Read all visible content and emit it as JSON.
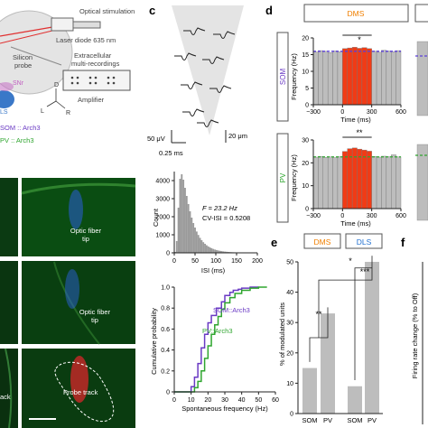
{
  "colors": {
    "dms": "#f07f00",
    "dls": "#1e6fd0",
    "som": "#6a3ac4",
    "pv": "#2fa52f",
    "bar_gray": "#bdbdbd",
    "bar_red": "#f03b16",
    "histo_gray": "#9a9a9a",
    "micro_green": "#0a4d12",
    "probe_red": "#d8262a",
    "probe_blue": "#2b5fd8"
  },
  "panel_a": {
    "optical_stimulation": "Optical stimulation",
    "laser": "Laser diode 635 nm",
    "silicon_probe_1": "Silicon",
    "silicon_probe_2": "probe",
    "snr": "SNr",
    "ls": "LS",
    "extracellular_1": "Extracellular",
    "extracellular_2": "multi-recordings",
    "amplifier": "Amplifier",
    "axis_d": "D",
    "axis_r": "R",
    "axis_l": "L",
    "som_label": "SOM :: Arch3",
    "pv_label": "PV :: Arch3"
  },
  "panel_b": {
    "fiber_tip_1a": "Optic fiber",
    "fiber_tip_1b": "tip",
    "fiber_tip_2a": "Optic fiber",
    "fiber_tip_2b": "tip",
    "probe_track": "Probe track",
    "track_partial": "ack"
  },
  "panel_c": {
    "letter": "c",
    "scale_uv": "50 μV",
    "scale_ms": "0.25 ms",
    "scale_um": "20 μm",
    "histogram": {
      "ylabel": "Count",
      "xlabel": "ISI (ms)",
      "yticks": [
        "4000",
        "3000",
        "2000",
        "1000",
        "0"
      ],
      "xticks": [
        "0",
        "50",
        "100",
        "150",
        "200"
      ],
      "stat_f": "F = 23.2 Hz",
      "stat_cv": "CV-ISI = 0.5208"
    },
    "cdf": {
      "ylabel": "Cumulative probability",
      "xlabel": "Spontaneous frequency (Hz)",
      "yticks": [
        "1.0",
        "0.8",
        "0.6",
        "0.4",
        "0.2",
        "0"
      ],
      "xticks": [
        "0",
        "10",
        "20",
        "30",
        "40",
        "50",
        "60"
      ],
      "som_label": "SOM::Arch3",
      "pv_label": "PV::Arch3"
    }
  },
  "panel_d": {
    "letter": "d",
    "dms_box": "DMS",
    "top": {
      "side_label": "SOM",
      "ylabel": "Frequency (Hz)",
      "xlabel": "Time (ms)",
      "yticks": [
        "20",
        "15",
        "10",
        "5",
        "0"
      ],
      "xticks": [
        "−300",
        "0",
        "300",
        "600"
      ],
      "sig": "*"
    },
    "bottom": {
      "side_label": "PV",
      "ylabel": "Frequency (Hz)",
      "xlabel": "Time (ms)",
      "yticks": [
        "30",
        "20",
        "10",
        "0"
      ],
      "xticks": [
        "−300",
        "0",
        "300",
        "600"
      ],
      "sig": "**"
    }
  },
  "panel_e": {
    "letter": "e",
    "dms_box": "DMS",
    "dls_box": "DLS",
    "ylabel": "% of modulated units",
    "yticks": [
      "50",
      "40",
      "30",
      "20",
      "10",
      "0"
    ],
    "xticks": [
      "SOM",
      "PV",
      "SOM",
      "PV"
    ],
    "sig_1": "**",
    "sig_2": "*",
    "sig_3": "***"
  },
  "panel_f": {
    "letter": "f",
    "ylabel": "Firing rate change (% to Off)"
  },
  "chart_data": [
    {
      "type": "bar",
      "panel": "d-top (DMS, SOM)",
      "xlabel": "Time (ms)",
      "ylabel": "Frequency (Hz)",
      "xlim": [
        -300,
        600
      ],
      "ylim": [
        0,
        20
      ],
      "bin_starts": [
        -300,
        -250,
        -200,
        -150,
        -100,
        -50,
        0,
        50,
        100,
        150,
        200,
        250,
        300,
        350,
        400,
        450,
        500,
        550
      ],
      "values": [
        15.8,
        16.2,
        16.0,
        15.6,
        16.1,
        15.9,
        16.8,
        17.0,
        17.2,
        16.9,
        17.1,
        16.8,
        16.0,
        15.7,
        16.3,
        16.1,
        15.9,
        16.2
      ],
      "light_on_range": [
        0,
        300
      ],
      "baseline": 16
    },
    {
      "type": "bar",
      "panel": "d-bottom (DMS, PV)",
      "xlabel": "Time (ms)",
      "ylabel": "Frequency (Hz)",
      "xlim": [
        -300,
        600
      ],
      "ylim": [
        0,
        30
      ],
      "bin_starts": [
        -300,
        -250,
        -200,
        -150,
        -100,
        -50,
        0,
        50,
        100,
        150,
        200,
        250,
        300,
        350,
        400,
        450,
        500,
        550
      ],
      "values": [
        22.5,
        22.8,
        22.4,
        22.6,
        22.3,
        22.7,
        25.0,
        26.2,
        26.5,
        26.0,
        25.6,
        25.1,
        22.8,
        22.5,
        22.9,
        22.7,
        23.5,
        22.6
      ],
      "light_on_range": [
        0,
        300
      ],
      "baseline": 22.6
    },
    {
      "type": "bar",
      "panel": "c-histogram",
      "xlabel": "ISI (ms)",
      "ylabel": "Count",
      "xlim": [
        0,
        200
      ],
      "ylim": [
        0,
        4500
      ],
      "x": [
        2,
        6,
        10,
        14,
        18,
        22,
        26,
        30,
        34,
        38,
        42,
        46,
        50,
        54,
        58,
        62,
        66,
        70,
        74,
        78,
        82,
        86,
        90,
        94,
        98,
        102,
        106,
        110,
        114,
        118,
        122,
        126,
        130,
        134,
        138,
        142,
        146,
        150,
        154,
        158,
        162,
        166,
        170,
        174,
        178,
        182,
        186,
        190,
        194,
        198
      ],
      "values": [
        50,
        650,
        2500,
        4100,
        4350,
        4050,
        3600,
        3150,
        2700,
        2300,
        1950,
        1650,
        1400,
        1180,
        990,
        830,
        700,
        590,
        500,
        420,
        355,
        300,
        255,
        215,
        180,
        155,
        130,
        110,
        95,
        80,
        68,
        58,
        50,
        43,
        37,
        32,
        28,
        24,
        21,
        18,
        16,
        14,
        12,
        10,
        9,
        8,
        7,
        6,
        5,
        5
      ]
    },
    {
      "type": "line",
      "panel": "c-cdf",
      "xlabel": "Spontaneous frequency (Hz)",
      "ylabel": "Cumulative probability",
      "xlim": [
        0,
        60
      ],
      "ylim": [
        0,
        1
      ],
      "series": [
        {
          "name": "SOM::Arch3",
          "x": [
            0,
            8,
            10,
            12,
            14,
            16,
            18,
            20,
            22,
            25,
            28,
            30,
            33,
            35,
            38,
            40,
            45,
            50
          ],
          "y": [
            0,
            0,
            0.05,
            0.14,
            0.27,
            0.42,
            0.55,
            0.66,
            0.73,
            0.8,
            0.86,
            0.92,
            0.95,
            0.97,
            0.98,
            0.99,
            1.0,
            1.0
          ]
        },
        {
          "name": "PV::Arch3",
          "x": [
            0,
            10,
            12,
            14,
            16,
            18,
            20,
            22,
            24,
            26,
            28,
            30,
            33,
            36,
            40,
            45,
            50,
            55
          ],
          "y": [
            0,
            0,
            0.04,
            0.1,
            0.2,
            0.32,
            0.44,
            0.55,
            0.64,
            0.72,
            0.79,
            0.85,
            0.9,
            0.94,
            0.97,
            0.99,
            1.0,
            1.0
          ]
        }
      ]
    },
    {
      "type": "bar",
      "panel": "e",
      "ylabel": "% of modulated units",
      "ylim": [
        0,
        50
      ],
      "categories": [
        "SOM",
        "PV",
        "SOM",
        "PV"
      ],
      "groups": [
        "DMS",
        "DMS",
        "DLS",
        "DLS"
      ],
      "values": [
        15,
        33,
        9,
        50
      ]
    }
  ]
}
